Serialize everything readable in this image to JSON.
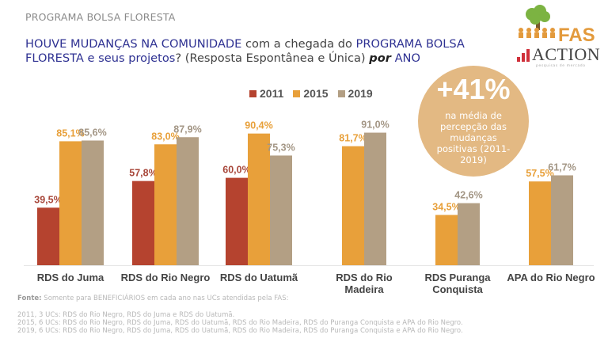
{
  "header": {
    "section_title": "PROGRAMA BOLSA FLORESTA",
    "question": {
      "part1": "HOUVE MUDANÇAS NA COMUNIDADE",
      "part2": " com a chegada do ",
      "part3": "PROGRAMA BOLSA FLORESTA e seus projetos",
      "part4": "? (Resposta Espontânea e Única) ",
      "part5": "por",
      "part6": " ANO"
    }
  },
  "logos": {
    "fas": "FAS",
    "action": "ACTION",
    "action_sub": "pesquisas de mercado"
  },
  "badge": {
    "big": "+41%",
    "text": "na média de percepção das mudanças positivas (2011-2019)"
  },
  "colors": {
    "2011": "#b5432f",
    "2015": "#e8a03a",
    "2019": "#b39f84",
    "title_accent": "#2e3192",
    "badge": "#e3b983"
  },
  "chart_data": {
    "type": "bar",
    "title": "HOUVE MUDANÇAS NA COMUNIDADE com a chegada do PROGRAMA BOLSA FLORESTA e seus projetos? (Resposta Espontânea e Única) por ANO",
    "xlabel": "",
    "ylabel": "",
    "ylim": [
      0,
      100
    ],
    "grid": false,
    "legend_position": "top",
    "categories": [
      "RDS do Juma",
      "RDS do Rio Negro",
      "RDS do Uatumã",
      "RDS do Rio Madeira",
      "RDS Puranga Conquista",
      "APA do Rio Negro"
    ],
    "category_lines": [
      [
        "RDS do Juma"
      ],
      [
        "RDS do Rio Negro"
      ],
      [
        "RDS do Uatumã"
      ],
      [
        "RDS do Rio",
        "Madeira"
      ],
      [
        "RDS Puranga",
        "Conquista"
      ],
      [
        "APA do Rio Negro"
      ]
    ],
    "series": [
      {
        "name": "2011",
        "values": [
          39.5,
          57.8,
          60.0,
          null,
          null,
          null
        ],
        "labels": [
          "39,5%",
          "57,8%",
          "60,0%",
          null,
          null,
          null
        ]
      },
      {
        "name": "2015",
        "values": [
          85.1,
          83.0,
          90.4,
          81.7,
          34.5,
          57.5
        ],
        "labels": [
          "85,1%",
          "83,0%",
          "90,4%",
          "81,7%",
          "34,5%",
          "57,5%"
        ]
      },
      {
        "name": "2019",
        "values": [
          85.6,
          87.9,
          75.3,
          91.0,
          42.6,
          61.7
        ],
        "labels": [
          "85,6%",
          "87,9%",
          "75,3%",
          "91,0%",
          "42,6%",
          "61,7%"
        ]
      }
    ]
  },
  "footnote": {
    "label": "Fonte:",
    "text": " Somente para BENEFICIÁRIOS em cada ano nas UCs atendidas pela FAS:"
  },
  "notes": [
    "2011, 3 UCs: RDS do Rio Negro, RDS do Juma e RDS do Uatumã.",
    "2015, 6 UCs: RDS do Rio Negro, RDS do Juma, RDS do Uatumã, RDS do Rio Madeira, RDS do Puranga Conquista e APA do Rio Negro.",
    "2019, 6 UCs: RDS do Rio Negro, RDS do Juma, RDS do Uatumã, RDS do Rio Madeira, RDS do Puranga Conquista e APA do Rio Negro."
  ]
}
